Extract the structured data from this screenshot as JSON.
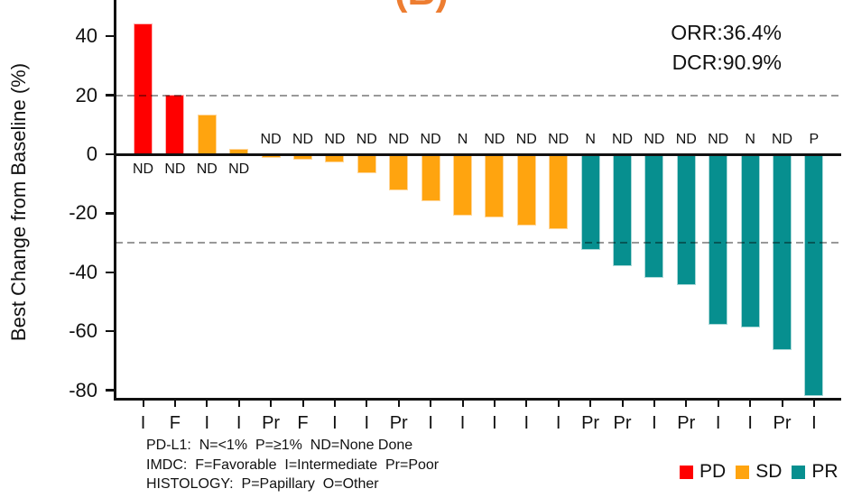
{
  "panel_label": "(B)",
  "stats": {
    "orr": "ORR:36.4%",
    "dcr": "DCR:90.9%"
  },
  "colors": {
    "PD": "#ff0000",
    "SD": "#ffa40f",
    "PR": "#078f8f",
    "panel_label": "#ed7d31",
    "reference_line": "#999999",
    "axis": "#111111"
  },
  "legend": {
    "items": [
      {
        "label": "PD",
        "response": "PD",
        "color": "#ff0000"
      },
      {
        "label": "SD",
        "response": "SD",
        "color": "#ffa40f"
      },
      {
        "label": "PR",
        "response": "PR",
        "color": "#078f8f"
      }
    ]
  },
  "footnotes": [
    "PD-L1:  N=<1%  P=≥1%  ND=None Done",
    "IMDC:  F=Favorable  I=Intermediate  Pr=Poor",
    "HISTOLOGY:  P=Papillary  O=Other"
  ],
  "chart_data": {
    "type": "bar",
    "title": "(B)",
    "xlabel": "",
    "ylabel": "Best Change from Baseline (%)",
    "ylim": [
      -83,
      52
    ],
    "y_ticks": [
      40,
      20,
      0,
      -20,
      -40,
      -60,
      -80
    ],
    "reference_lines": [
      20,
      -30
    ],
    "grid": false,
    "legend_position": "bottom-right",
    "annotations": [
      "ORR:36.4%",
      "DCR:90.9%"
    ],
    "categories": [
      "I",
      "F",
      "I",
      "I",
      "Pr",
      "F",
      "I",
      "I",
      "Pr",
      "I",
      "I",
      "I",
      "I",
      "I",
      "Pr",
      "Pr",
      "I",
      "Pr",
      "I",
      "I",
      "Pr",
      "I"
    ],
    "values": [
      44,
      20,
      13,
      1.5,
      -1,
      -1.5,
      -2.5,
      -6,
      -12,
      -15.5,
      -20.5,
      -21,
      -24,
      -25,
      -32,
      -37.5,
      -41.5,
      -44,
      -57.5,
      -58.5,
      -66,
      -81.5
    ],
    "bar_labels": [
      "ND",
      "ND",
      "ND",
      "ND",
      "ND",
      "ND",
      "ND",
      "ND",
      "ND",
      "ND",
      "N",
      "ND",
      "ND",
      "ND",
      "N",
      "ND",
      "ND",
      "ND",
      "ND",
      "N",
      "ND",
      "P"
    ],
    "responses": [
      "PD",
      "PD",
      "SD",
      "SD",
      "SD",
      "SD",
      "SD",
      "SD",
      "SD",
      "SD",
      "SD",
      "SD",
      "SD",
      "SD",
      "PR",
      "PR",
      "PR",
      "PR",
      "PR",
      "PR",
      "PR",
      "PR"
    ]
  }
}
